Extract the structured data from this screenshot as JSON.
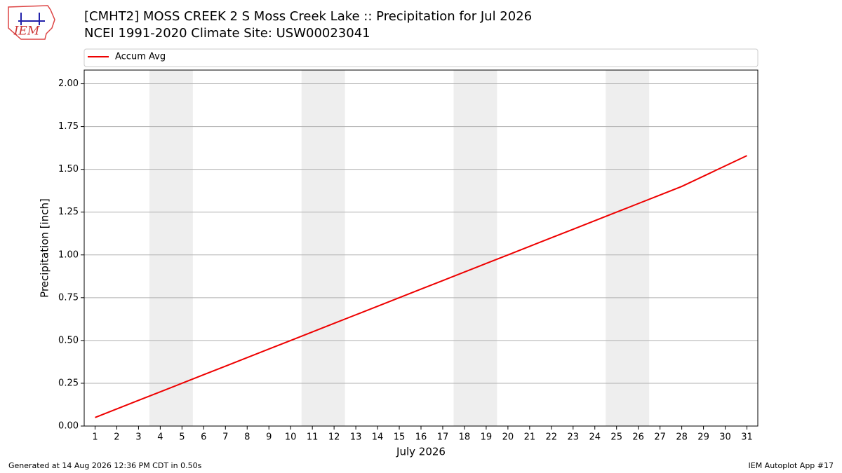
{
  "logo_text": "IEM",
  "footer_left": "Generated at 14 Aug 2026 12:36 PM CDT in 0.50s",
  "footer_right": "IEM Autoplot App #17",
  "chart_data": {
    "type": "line",
    "title": "[CMHT2] MOSS CREEK 2 S Moss Creek Lake :: Precipitation for Jul 2026",
    "subtitle": "NCEI 1991-2020 Climate Site: USW00023041",
    "x_label": "July 2026",
    "y_label": "Precipitation [inch]",
    "x": [
      1,
      2,
      3,
      4,
      5,
      6,
      7,
      8,
      9,
      10,
      11,
      12,
      13,
      14,
      15,
      16,
      17,
      18,
      19,
      20,
      21,
      22,
      23,
      24,
      25,
      26,
      27,
      28,
      29,
      30,
      31
    ],
    "series": [
      {
        "name": "Accum Avg",
        "color": "#ee0000",
        "values": [
          0.05,
          0.1,
          0.15,
          0.2,
          0.25,
          0.3,
          0.35,
          0.4,
          0.45,
          0.5,
          0.55,
          0.6,
          0.65,
          0.7,
          0.75,
          0.8,
          0.85,
          0.9,
          0.95,
          1.0,
          1.05,
          1.1,
          1.15,
          1.2,
          1.25,
          1.3,
          1.35,
          1.4,
          1.46,
          1.52,
          1.58
        ]
      }
    ],
    "xlim": [
      0.5,
      31.5
    ],
    "xticks": [
      1,
      2,
      3,
      4,
      5,
      6,
      7,
      8,
      9,
      10,
      11,
      12,
      13,
      14,
      15,
      16,
      17,
      18,
      19,
      20,
      21,
      22,
      23,
      24,
      25,
      26,
      27,
      28,
      29,
      30,
      31
    ],
    "ylim": [
      0,
      2.08
    ],
    "yticks": [
      {
        "value": 0,
        "label": "0.00"
      },
      {
        "value": 0.25,
        "label": "0.25"
      },
      {
        "value": 0.5,
        "label": "0.50"
      },
      {
        "value": 0.75,
        "label": "0.75"
      },
      {
        "value": 1,
        "label": "1.00"
      },
      {
        "value": 1.25,
        "label": "1.25"
      },
      {
        "value": 1.5,
        "label": "1.50"
      },
      {
        "value": 1.75,
        "label": "1.75"
      },
      {
        "value": 2,
        "label": "2.00"
      }
    ],
    "shaded_spans": [
      [
        3.5,
        5.5
      ],
      [
        10.5,
        12.5
      ],
      [
        17.5,
        19.5
      ],
      [
        24.5,
        26.5
      ]
    ],
    "shade_color": "#eeeeee",
    "grid": true
  }
}
